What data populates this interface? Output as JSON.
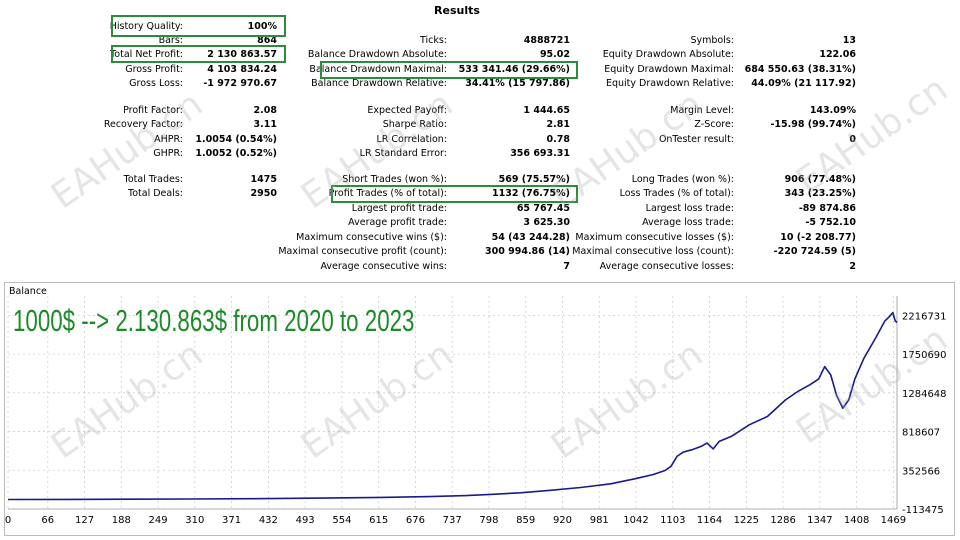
{
  "results_title": "Results",
  "stats": {
    "history_quality": {
      "label": "History Quality:",
      "value": "100%"
    },
    "bars": {
      "label": "Bars:",
      "value": "864"
    },
    "total_net_profit": {
      "label": "Total Net Profit:",
      "value": "2 130 863.57"
    },
    "gross_profit": {
      "label": "Gross Profit:",
      "value": "4 103 834.24"
    },
    "gross_loss": {
      "label": "Gross Loss:",
      "value": "-1 972 970.67"
    },
    "profit_factor": {
      "label": "Profit Factor:",
      "value": "2.08"
    },
    "recovery_factor": {
      "label": "Recovery Factor:",
      "value": "3.11"
    },
    "ahpr": {
      "label": "AHPR:",
      "value": "1.0054 (0.54%)"
    },
    "ghpr": {
      "label": "GHPR:",
      "value": "1.0052 (0.52%)"
    },
    "total_trades": {
      "label": "Total Trades:",
      "value": "1475"
    },
    "total_deals": {
      "label": "Total Deals:",
      "value": "2950"
    },
    "ticks": {
      "label": "Ticks:",
      "value": "4888721"
    },
    "balance_dd_abs": {
      "label": "Balance Drawdown Absolute:",
      "value": "95.02"
    },
    "balance_dd_max": {
      "label": "Balance Drawdown Maximal:",
      "value": "533 341.46 (29.66%)"
    },
    "balance_dd_rel": {
      "label": "Balance Drawdown Relative:",
      "value": "34.41% (15 797.86)"
    },
    "expected_payoff": {
      "label": "Expected Payoff:",
      "value": "1 444.65"
    },
    "sharpe_ratio": {
      "label": "Sharpe Ratio:",
      "value": "2.81"
    },
    "lr_correlation": {
      "label": "LR Correlation:",
      "value": "0.78"
    },
    "lr_std_error": {
      "label": "LR Standard Error:",
      "value": "356 693.31"
    },
    "short_trades": {
      "label": "Short Trades (won %):",
      "value": "569 (75.57%)"
    },
    "profit_trades": {
      "label": "Profit Trades (% of total):",
      "value": "1132 (76.75%)"
    },
    "largest_profit": {
      "label": "Largest profit trade:",
      "value": "65 767.45"
    },
    "average_profit": {
      "label": "Average profit trade:",
      "value": "3 625.30"
    },
    "max_consec_wins": {
      "label": "Maximum consecutive wins ($):",
      "value": "54 (43 244.28)"
    },
    "maximal_consec_profit": {
      "label": "Maximal consecutive profit (count):",
      "value": "300 994.86 (14)"
    },
    "avg_consec_wins": {
      "label": "Average consecutive wins:",
      "value": "7"
    },
    "symbols": {
      "label": "Symbols:",
      "value": "13"
    },
    "equity_dd_abs": {
      "label": "Equity Drawdown Absolute:",
      "value": "122.06"
    },
    "equity_dd_max": {
      "label": "Equity Drawdown Maximal:",
      "value": "684 550.63 (38.31%)"
    },
    "equity_dd_rel": {
      "label": "Equity Drawdown Relative:",
      "value": "44.09% (21 117.92)"
    },
    "margin_level": {
      "label": "Margin Level:",
      "value": "143.09%"
    },
    "z_score": {
      "label": "Z-Score:",
      "value": "-15.98 (99.74%)"
    },
    "ontester": {
      "label": "OnTester result:",
      "value": "0"
    },
    "long_trades": {
      "label": "Long Trades (won %):",
      "value": "906 (77.48%)"
    },
    "loss_trades": {
      "label": "Loss Trades (% of total):",
      "value": "343 (23.25%)"
    },
    "largest_loss": {
      "label": "Largest loss trade:",
      "value": "-89 874.86"
    },
    "average_loss": {
      "label": "Average loss trade:",
      "value": "-5 752.10"
    },
    "max_consec_losses": {
      "label": "Maximum consecutive losses ($):",
      "value": "10 (-2 208.77)"
    },
    "maximal_consec_loss": {
      "label": "Maximal consecutive loss (count):",
      "value": "-220 724.59 (5)"
    },
    "avg_consec_losses": {
      "label": "Average consecutive losses:",
      "value": "2"
    }
  },
  "watermark_text": "EAHub.cn",
  "colors": {
    "highlight": "#2e8b3a",
    "balance_line": "#1a1a8c",
    "annotation": "#1e8a2a"
  },
  "chart_data": {
    "type": "line",
    "title": "Balance",
    "annotation": "1000$ --> 2.130.863$ from 2020 to 2023",
    "xlim": [
      0,
      1475
    ],
    "ylim": [
      -113475,
      2450000
    ],
    "x_ticks": [
      0,
      66,
      127,
      188,
      249,
      310,
      371,
      432,
      493,
      554,
      615,
      676,
      737,
      798,
      859,
      920,
      981,
      1042,
      1103,
      1164,
      1225,
      1286,
      1347,
      1408,
      1469
    ],
    "y_ticks": [
      -113475,
      352566,
      818607,
      1284648,
      1750690,
      2216731
    ],
    "grid": true,
    "series": [
      {
        "x": [
          0,
          100,
          200,
          300,
          400,
          500,
          600,
          700,
          760,
          800,
          850,
          900,
          950,
          1000,
          1040,
          1070,
          1090,
          1100,
          1110,
          1120,
          1135,
          1150,
          1160,
          1170,
          1180,
          1200,
          1230,
          1260,
          1290,
          1310,
          1330,
          1345,
          1355,
          1365,
          1375,
          1385,
          1395,
          1405,
          1420,
          1440,
          1455,
          1462,
          1468,
          1472,
          1475
        ],
        "y": [
          1000,
          2000,
          4000,
          7000,
          11000,
          16000,
          24000,
          36000,
          48000,
          62000,
          82000,
          112000,
          145000,
          190000,
          250000,
          300000,
          350000,
          400000,
          520000,
          570000,
          600000,
          640000,
          680000,
          610000,
          700000,
          760000,
          900000,
          1000000,
          1200000,
          1300000,
          1380000,
          1450000,
          1600000,
          1500000,
          1250000,
          1100000,
          1200000,
          1450000,
          1700000,
          1950000,
          2150000,
          2200000,
          2250000,
          2150000,
          2130863
        ]
      }
    ]
  }
}
